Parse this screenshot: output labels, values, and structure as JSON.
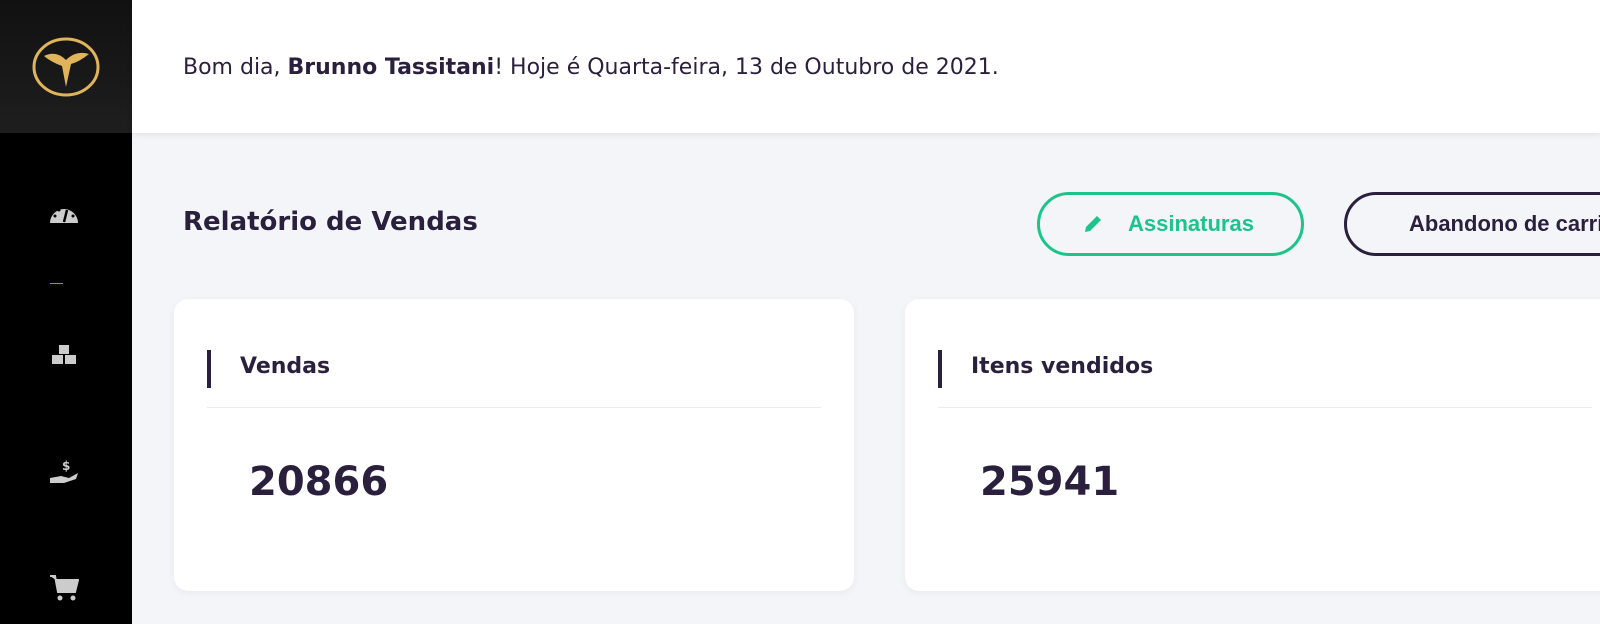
{
  "sidebar": {
    "logo": "logo",
    "items": [
      {
        "icon": "dashboard-icon"
      },
      {
        "icon": "cubes-icon"
      },
      {
        "icon": "hand-dollar-icon"
      },
      {
        "icon": "cart-icon"
      }
    ]
  },
  "header": {
    "greeting_prefix": "Bom dia, ",
    "user_name": "Brunno Tassitani",
    "greeting_suffix": "! Hoje é Quarta-feira, 13 de Outubro de 2021."
  },
  "main": {
    "title": "Relatório de Vendas",
    "buttons": {
      "subscriptions": "Assinaturas",
      "abandoned": "Abandono de carrinho"
    },
    "cards": [
      {
        "label": "Vendas",
        "value": "20866"
      },
      {
        "label": "Itens vendidos",
        "value": "25941"
      }
    ]
  },
  "colors": {
    "accent": "#1dc48a",
    "text": "#2a1f3d",
    "gold": "#e0b45a"
  }
}
